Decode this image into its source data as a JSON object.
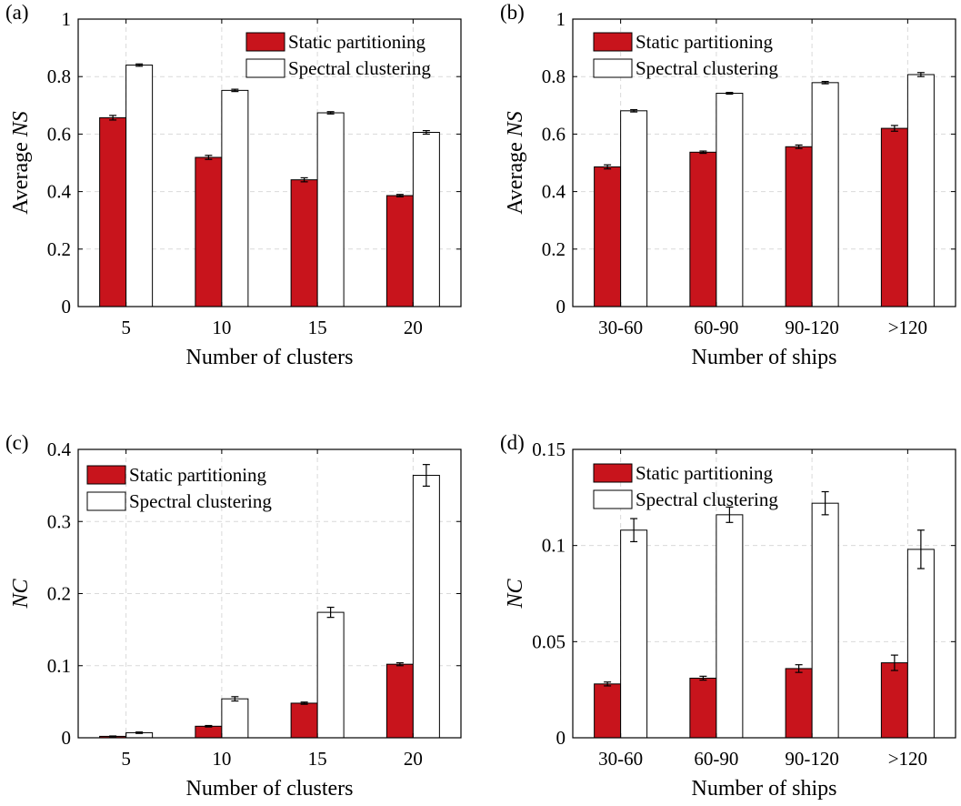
{
  "colors": {
    "static": "#c8141c",
    "spectral": "#ffffff",
    "grid": "#d9d9d9",
    "axis": "#000000"
  },
  "legend": [
    "Static partitioning",
    "Spectral clustering"
  ],
  "chart_data": [
    {
      "panel": "(a)",
      "type": "bar",
      "categories": [
        "5",
        "10",
        "15",
        "20"
      ],
      "xlabel": "Number of clusters",
      "ylabel": "Average NS",
      "ylim": [
        0,
        1
      ],
      "yticks": [
        0,
        0.2,
        0.4,
        0.6,
        0.8,
        1
      ],
      "ytick_labels": [
        "0",
        "0.2",
        "0.4",
        "0.6",
        "0.8",
        "1"
      ],
      "grid": true,
      "legend_position": "top-right",
      "series": [
        {
          "name": "Static partitioning",
          "values": [
            0.657,
            0.519,
            0.441,
            0.386
          ],
          "errors": [
            0.008,
            0.007,
            0.007,
            0.004
          ]
        },
        {
          "name": "Spectral clustering",
          "values": [
            0.84,
            0.752,
            0.674,
            0.606
          ],
          "errors": [
            0.004,
            0.004,
            0.004,
            0.006
          ]
        }
      ]
    },
    {
      "panel": "(b)",
      "type": "bar",
      "categories": [
        "30-60",
        "60-90",
        "90-120",
        ">120"
      ],
      "xlabel": "Number of ships",
      "ylabel": "Average NS",
      "ylim": [
        0,
        1
      ],
      "yticks": [
        0,
        0.2,
        0.4,
        0.6,
        0.8,
        1
      ],
      "ytick_labels": [
        "0",
        "0.2",
        "0.4",
        "0.6",
        "0.8",
        "1"
      ],
      "grid": true,
      "legend_position": "top-left",
      "series": [
        {
          "name": "Static partitioning",
          "values": [
            0.486,
            0.537,
            0.556,
            0.62
          ],
          "errors": [
            0.007,
            0.004,
            0.006,
            0.01
          ]
        },
        {
          "name": "Spectral clustering",
          "values": [
            0.681,
            0.742,
            0.779,
            0.807
          ],
          "errors": [
            0.004,
            0.003,
            0.004,
            0.007
          ]
        }
      ]
    },
    {
      "panel": "(c)",
      "type": "bar",
      "categories": [
        "5",
        "10",
        "15",
        "20"
      ],
      "xlabel": "Number of clusters",
      "ylabel": "NC",
      "ylim": [
        0,
        0.4
      ],
      "yticks": [
        0,
        0.1,
        0.2,
        0.3,
        0.4
      ],
      "ytick_labels": [
        "0",
        "0.1",
        "0.2",
        "0.3",
        "0.4"
      ],
      "grid": true,
      "legend_position": "top-left",
      "series": [
        {
          "name": "Static partitioning",
          "values": [
            0.002,
            0.016,
            0.048,
            0.102
          ],
          "errors": [
            0.0005,
            0.001,
            0.0015,
            0.002
          ]
        },
        {
          "name": "Spectral clustering",
          "values": [
            0.007,
            0.054,
            0.174,
            0.364
          ],
          "errors": [
            0.001,
            0.003,
            0.007,
            0.015
          ]
        }
      ]
    },
    {
      "panel": "(d)",
      "type": "bar",
      "categories": [
        "30-60",
        "60-90",
        "90-120",
        ">120"
      ],
      "xlabel": "Number of ships",
      "ylabel": "NC",
      "ylim": [
        0,
        0.15
      ],
      "yticks": [
        0,
        0.05,
        0.1,
        0.15
      ],
      "ytick_labels": [
        "0",
        "0.05",
        "0.1",
        "0.15"
      ],
      "grid": true,
      "legend_position": "top-left",
      "series": [
        {
          "name": "Static partitioning",
          "values": [
            0.028,
            0.031,
            0.036,
            0.039
          ],
          "errors": [
            0.001,
            0.001,
            0.002,
            0.004
          ]
        },
        {
          "name": "Spectral clustering",
          "values": [
            0.108,
            0.116,
            0.122,
            0.098
          ],
          "errors": [
            0.006,
            0.004,
            0.006,
            0.01
          ]
        }
      ]
    }
  ]
}
